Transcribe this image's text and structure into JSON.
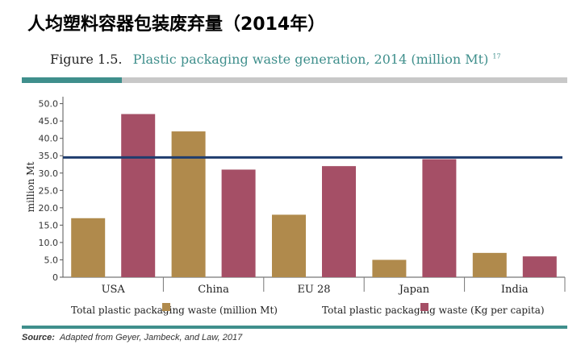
{
  "page_title": "人均塑料容器包装废弃量（2014年）",
  "figure": {
    "label": "Figure 1.5.",
    "caption": "Plastic packaging waste generation, 2014 (million Mt)",
    "superscript": "17"
  },
  "source": {
    "label": "Source:",
    "text": "Adapted from Geyer, Jambeck, and Law, 2017"
  },
  "colors": {
    "series1": "#b08a4c",
    "series2": "#a54f66",
    "reference_line": "#1f3d6e",
    "accent": "#3f8f8c"
  },
  "chart_data": {
    "type": "bar",
    "categories": [
      "USA",
      "China",
      "EU 28",
      "Japan",
      "India"
    ],
    "series": [
      {
        "name": "Total plastic packaging waste (million Mt)",
        "values": [
          17,
          42,
          18,
          5,
          7
        ]
      },
      {
        "name": "Total plastic packaging waste (Kg per capita)",
        "values": [
          47,
          31,
          32,
          34,
          6
        ]
      }
    ],
    "reference_line": 34.5,
    "ylabel": "million Mt",
    "ylim": [
      0,
      52
    ],
    "yticks": [
      "50.0",
      "45.0",
      "40.0",
      "35.0",
      "30.0",
      "25.0",
      "20.0",
      "15.0",
      "10.0",
      "5.0",
      "0"
    ],
    "ytick_values": [
      50,
      45,
      40,
      35,
      30,
      25,
      20,
      15,
      10,
      5,
      0
    ],
    "legend_position": "bottom"
  }
}
